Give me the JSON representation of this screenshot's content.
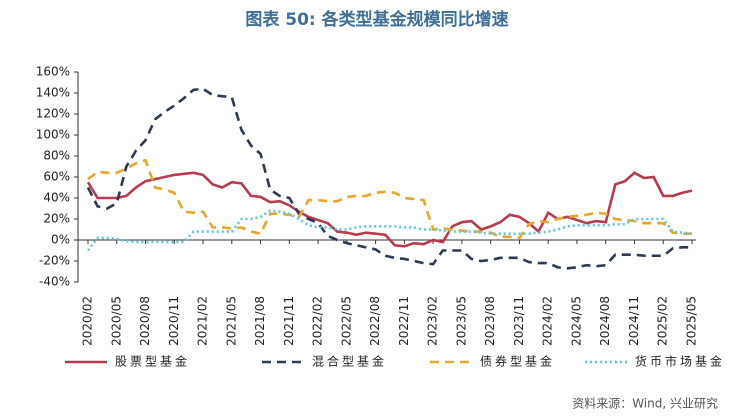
{
  "chart_data": {
    "type": "line",
    "title": "图表 50: 各类型基金规模同比增速",
    "source": "资料来源：Wind, 兴业研究",
    "categories": [
      "2020/02",
      null,
      null,
      "2020/05",
      null,
      null,
      "2020/08",
      null,
      null,
      "2020/11",
      null,
      null,
      "2021/02",
      null,
      null,
      "2021/05",
      null,
      null,
      "2021/08",
      null,
      null,
      "2021/11",
      null,
      null,
      "2022/02",
      null,
      null,
      "2022/05",
      null,
      null,
      "2022/08",
      null,
      null,
      "2022/11",
      null,
      null,
      "2023/02",
      null,
      null,
      "2023/05",
      null,
      null,
      "2023/08",
      null,
      null,
      "2023/11",
      null,
      null,
      "2024/02",
      null,
      null,
      "2024/05",
      null,
      null,
      "2024/08",
      null,
      null,
      "2024/11",
      null,
      null,
      "2025/02",
      null,
      null,
      "2025/05"
    ],
    "series": [
      {
        "name": "股票型基金",
        "color": "#b83a4e",
        "dash": "solid",
        "values": [
          55,
          40,
          40,
          40,
          42,
          50,
          56,
          58,
          60,
          62,
          63,
          64,
          62,
          53,
          50,
          55,
          54,
          42,
          41,
          36,
          37,
          33,
          27,
          22,
          19,
          16,
          8,
          7,
          5,
          7,
          6,
          5,
          -5,
          -6,
          -3,
          -4,
          0,
          -2,
          13,
          17,
          18,
          10,
          13,
          17,
          24,
          22,
          16,
          8,
          26,
          20,
          22,
          19,
          16,
          18,
          17,
          53,
          56,
          64,
          59,
          60,
          42,
          42,
          45,
          47
        ]
      },
      {
        "name": "混合型基金",
        "color": "#2c3a56",
        "dash": "dashed",
        "values": [
          50,
          32,
          30,
          35,
          70,
          85,
          95,
          115,
          122,
          128,
          135,
          143,
          144,
          138,
          137,
          136,
          105,
          90,
          82,
          48,
          42,
          40,
          25,
          20,
          16,
          4,
          0,
          -3,
          -5,
          -7,
          -9,
          -15,
          -17,
          -18,
          -20,
          -22,
          -23,
          -10,
          -10,
          -10,
          -18,
          -20,
          -19,
          -17,
          -17,
          -17,
          -21,
          -22,
          -22,
          -26,
          -27,
          -26,
          -24,
          -25,
          -24,
          -14,
          -14,
          -14,
          -15,
          -15,
          -15,
          -8,
          -7,
          -7
        ]
      },
      {
        "name": "债券型基金",
        "color": "#e8a62a",
        "dash": "dashed",
        "values": [
          58,
          65,
          64,
          64,
          68,
          73,
          76,
          50,
          48,
          45,
          27,
          26,
          27,
          12,
          12,
          11,
          12,
          8,
          6,
          25,
          25,
          24,
          22,
          38,
          38,
          37,
          37,
          41,
          42,
          42,
          45,
          46,
          45,
          40,
          39,
          38,
          10,
          11,
          10,
          9,
          8,
          8,
          7,
          3,
          3,
          2,
          15,
          18,
          17,
          20,
          22,
          23,
          24,
          26,
          25,
          20,
          19,
          18,
          16,
          16,
          16,
          7,
          6,
          6
        ]
      },
      {
        "name": "货币市场基金",
        "color": "#5cc8dc",
        "dash": "dotted",
        "values": [
          -10,
          2,
          2,
          1,
          -1,
          -2,
          -2,
          -2,
          -2,
          -2,
          -2,
          8,
          8,
          8,
          8,
          8,
          20,
          20,
          22,
          28,
          27,
          25,
          20,
          14,
          12,
          12,
          10,
          10,
          12,
          13,
          13,
          13,
          13,
          12,
          12,
          10,
          10,
          9,
          8,
          8,
          8,
          7,
          6,
          6,
          6,
          6,
          6,
          7,
          8,
          10,
          13,
          14,
          14,
          14,
          14,
          15,
          15,
          20,
          20,
          20,
          20,
          8,
          7,
          6
        ]
      }
    ],
    "ylim": [
      -40,
      160
    ],
    "yticks": [
      {
        "value": -40,
        "label": "-40%"
      },
      {
        "value": -20,
        "label": "-20%"
      },
      {
        "value": 0,
        "label": "0%"
      },
      {
        "value": 20,
        "label": "20%"
      },
      {
        "value": 40,
        "label": "40%"
      },
      {
        "value": 60,
        "label": "60%"
      },
      {
        "value": 80,
        "label": "80%"
      },
      {
        "value": 100,
        "label": "100%"
      },
      {
        "value": 120,
        "label": "120%"
      },
      {
        "value": 140,
        "label": "140%"
      },
      {
        "value": 160,
        "label": "160%"
      }
    ],
    "legend": "bottom"
  }
}
